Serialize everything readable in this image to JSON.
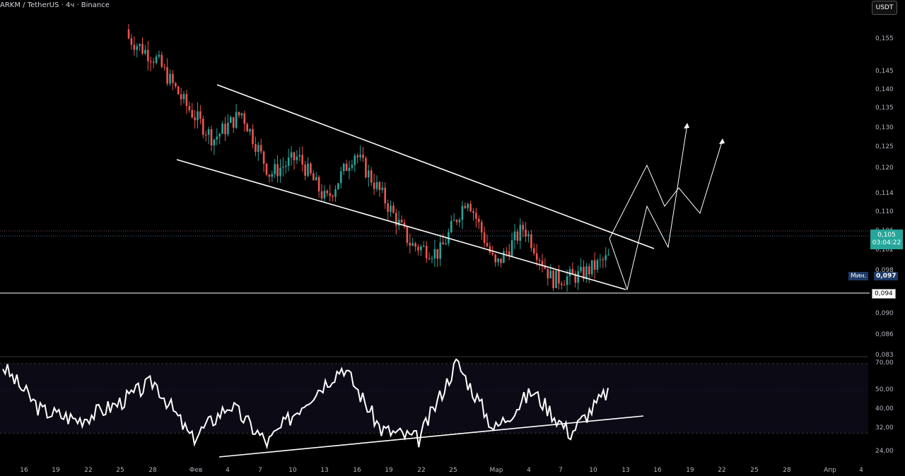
{
  "header": {
    "symbol_title": "ARKM / TetherUS · 4ч · Binance",
    "currency_button": "USDT"
  },
  "price_scale": {
    "ticks": [
      "0,155",
      "0,145",
      "0,140",
      "0,135",
      "0,130",
      "0,125",
      "0,120",
      "0,114",
      "0,110",
      "0,106",
      "0,102",
      "0,098",
      "0,090",
      "0,086",
      "0,083"
    ]
  },
  "badges": {
    "last_price": "0,105",
    "countdown": "03:04:22",
    "min_label": "Мин.",
    "min_value": "0,097",
    "level_value": "0,094"
  },
  "oscillator_scale": {
    "ticks": [
      "70,00",
      "50,00",
      "40,00",
      "32,00",
      "24,00"
    ]
  },
  "time_axis": {
    "ticks": [
      "16",
      "19",
      "22",
      "25",
      "28",
      "Фев",
      "4",
      "7",
      "10",
      "13",
      "16",
      "19",
      "22",
      "25",
      "Мар",
      "4",
      "7",
      "10",
      "13",
      "16",
      "19",
      "22",
      "25",
      "28",
      "Апр",
      "4"
    ]
  },
  "colors": {
    "up": "#26a69a",
    "down": "#ef5350",
    "lines": "#ffffff",
    "last_price_bg": "#26a69a",
    "min_bg": "#1e3a66"
  },
  "chart_data": [
    {
      "type": "line",
      "description_of_series": "ARKM/USDT 4h closing path (approximate)",
      "x": [
        "Jan 27",
        "Jan 30",
        "Feb 1",
        "Feb 3",
        "Feb 5",
        "Feb 7",
        "Feb 9",
        "Feb 11",
        "Feb 14",
        "Feb 17",
        "Feb 20",
        "Feb 23",
        "Feb 26",
        "Mar 1",
        "Mar 4",
        "Mar 7",
        "Mar 9",
        "Mar 11"
      ],
      "values": [
        0.155,
        0.15,
        0.14,
        0.132,
        0.138,
        0.124,
        0.128,
        0.118,
        0.129,
        0.119,
        0.108,
        0.106,
        0.119,
        0.103,
        0.112,
        0.1,
        0.101,
        0.105
      ],
      "ylim": [
        0.083,
        0.158
      ],
      "annotations": {
        "horizontal_level": 0.094,
        "minimum": 0.097,
        "last_price": 0.105
      }
    },
    {
      "type": "line",
      "description_of_series": "oscillator (approximate)",
      "x": [
        "Jan 14",
        "Jan 17",
        "Jan 20",
        "Jan 24",
        "Jan 28",
        "Feb 1",
        "Feb 4",
        "Feb 7",
        "Feb 10",
        "Feb 14",
        "Feb 19",
        "Feb 24",
        "Feb 26",
        "Mar 1",
        "Mar 4",
        "Mar 8",
        "Mar 11"
      ],
      "values": [
        68,
        45,
        40,
        48,
        60,
        30,
        48,
        28,
        50,
        68,
        35,
        30,
        70,
        35,
        55,
        33,
        55
      ],
      "ylim": [
        22,
        72
      ]
    }
  ]
}
